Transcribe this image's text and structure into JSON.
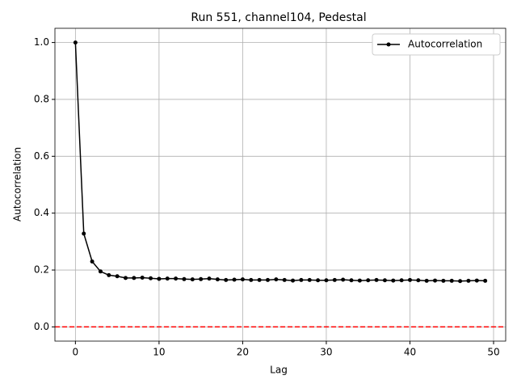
{
  "chart_data": {
    "type": "line",
    "title": "Run 551, channel104, Pedestal",
    "xlabel": "Lag",
    "ylabel": "Autocorrelation",
    "x": [
      0,
      1,
      2,
      3,
      4,
      5,
      6,
      7,
      8,
      9,
      10,
      11,
      12,
      13,
      14,
      15,
      16,
      17,
      18,
      19,
      20,
      21,
      22,
      23,
      24,
      25,
      26,
      27,
      28,
      29,
      30,
      31,
      32,
      33,
      34,
      35,
      36,
      37,
      38,
      39,
      40,
      41,
      42,
      43,
      44,
      45,
      46,
      47,
      48,
      49
    ],
    "series": [
      {
        "name": "Autocorrelation",
        "color": "#000000",
        "values": [
          1.0,
          0.328,
          0.23,
          0.195,
          0.182,
          0.178,
          0.172,
          0.172,
          0.173,
          0.171,
          0.169,
          0.17,
          0.17,
          0.168,
          0.167,
          0.168,
          0.17,
          0.167,
          0.165,
          0.166,
          0.167,
          0.165,
          0.165,
          0.165,
          0.167,
          0.165,
          0.163,
          0.165,
          0.165,
          0.164,
          0.164,
          0.165,
          0.166,
          0.164,
          0.163,
          0.164,
          0.165,
          0.164,
          0.163,
          0.164,
          0.165,
          0.164,
          0.162,
          0.163,
          0.162,
          0.162,
          0.161,
          0.162,
          0.163,
          0.162
        ]
      }
    ],
    "hline": {
      "value": 0,
      "color": "#ff0000"
    },
    "xlim": [
      -2.45,
      51.45
    ],
    "ylim": [
      -0.05,
      1.05
    ],
    "xticks": [
      0,
      10,
      20,
      30,
      40,
      50
    ],
    "yticks": [
      {
        "value": 0,
        "label": "0.0"
      },
      {
        "value": 0.2,
        "label": "0.2"
      },
      {
        "value": 0.4,
        "label": "0.4"
      },
      {
        "value": 0.6,
        "label": "0.6"
      },
      {
        "value": 0.8,
        "label": "0.8"
      },
      {
        "value": 1,
        "label": "1.0"
      }
    ],
    "grid": true,
    "legend": "upper right"
  }
}
